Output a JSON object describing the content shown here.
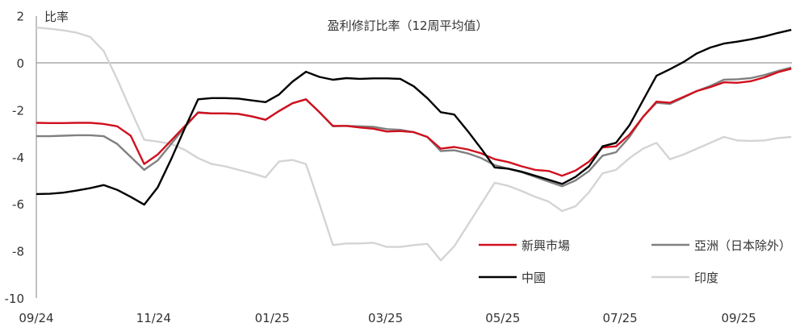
{
  "chart_data": {
    "type": "line",
    "title": "盈利修訂比率（12周平均值）",
    "ylabel": "比率",
    "ylim": [
      -10,
      2
    ],
    "yticks": [
      2,
      0,
      -2,
      -4,
      -6,
      -8,
      -10
    ],
    "grid": false,
    "zero_line": true,
    "legend_placement": "bottom-right",
    "x_tick_labels": [
      {
        "label": "09/24",
        "at": 0
      },
      {
        "label": "11/24",
        "at": 8.7
      },
      {
        "label": "01/25",
        "at": 17.5
      },
      {
        "label": "03/25",
        "at": 25.9
      },
      {
        "label": "05/25",
        "at": 34.6
      },
      {
        "label": "07/25",
        "at": 43.3
      },
      {
        "label": "09/25",
        "at": 52.1
      }
    ],
    "series": [
      {
        "name": "新興市場",
        "color": "#d0101e",
        "values": [
          -2.55,
          -2.56,
          -2.56,
          -2.55,
          -2.55,
          -2.6,
          -2.7,
          -3.1,
          -4.3,
          -3.9,
          -3.3,
          -2.7,
          -2.12,
          -2.15,
          -2.15,
          -2.17,
          -2.28,
          -2.42,
          -2.05,
          -1.72,
          -1.55,
          -2.1,
          -2.68,
          -2.68,
          -2.75,
          -2.8,
          -2.92,
          -2.9,
          -2.95,
          -3.15,
          -3.65,
          -3.58,
          -3.68,
          -3.85,
          -4.1,
          -4.22,
          -4.4,
          -4.55,
          -4.6,
          -4.8,
          -4.58,
          -4.2,
          -3.6,
          -3.55,
          -3.05,
          -2.3,
          -1.65,
          -1.7,
          -1.45,
          -1.2,
          -1.03,
          -0.83,
          -0.85,
          -0.78,
          -0.62,
          -0.4,
          -0.25
        ]
      },
      {
        "name": "亞洲（日本除外）",
        "color": "#808080",
        "values": [
          -3.12,
          -3.12,
          -3.1,
          -3.08,
          -3.08,
          -3.12,
          -3.45,
          -4.0,
          -4.55,
          -4.15,
          -3.45,
          -2.75,
          -2.1,
          -2.15,
          -2.15,
          -2.17,
          -2.28,
          -2.42,
          -2.05,
          -1.72,
          -1.55,
          -2.1,
          -2.7,
          -2.68,
          -2.7,
          -2.72,
          -2.82,
          -2.85,
          -2.95,
          -3.15,
          -3.75,
          -3.72,
          -3.85,
          -4.05,
          -4.35,
          -4.5,
          -4.65,
          -4.85,
          -5.05,
          -5.25,
          -5.0,
          -4.6,
          -3.95,
          -3.8,
          -3.15,
          -2.3,
          -1.7,
          -1.75,
          -1.48,
          -1.2,
          -0.98,
          -0.72,
          -0.7,
          -0.65,
          -0.52,
          -0.35,
          -0.2
        ]
      },
      {
        "name": "中國",
        "color": "#000000",
        "values": [
          -5.58,
          -5.57,
          -5.52,
          -5.43,
          -5.33,
          -5.2,
          -5.4,
          -5.7,
          -6.03,
          -5.3,
          -4.1,
          -2.8,
          -1.55,
          -1.5,
          -1.5,
          -1.52,
          -1.6,
          -1.67,
          -1.35,
          -0.8,
          -0.38,
          -0.6,
          -0.72,
          -0.65,
          -0.68,
          -0.66,
          -0.66,
          -0.68,
          -1.0,
          -1.5,
          -2.1,
          -2.2,
          -2.9,
          -3.65,
          -4.45,
          -4.5,
          -4.63,
          -4.8,
          -4.97,
          -5.15,
          -4.85,
          -4.4,
          -3.55,
          -3.4,
          -2.65,
          -1.6,
          -0.55,
          -0.27,
          0.03,
          0.4,
          0.65,
          0.82,
          0.9,
          1.0,
          1.12,
          1.27,
          1.4
        ]
      },
      {
        "name": "印度",
        "color": "#d4d4d4",
        "values": [
          1.5,
          1.45,
          1.38,
          1.28,
          1.1,
          0.5,
          -0.7,
          -2.0,
          -3.27,
          -3.35,
          -3.45,
          -3.7,
          -4.05,
          -4.3,
          -4.4,
          -4.55,
          -4.7,
          -4.87,
          -4.2,
          -4.13,
          -4.3,
          -6.0,
          -7.75,
          -7.68,
          -7.68,
          -7.65,
          -7.83,
          -7.83,
          -7.75,
          -7.7,
          -8.4,
          -7.8,
          -6.9,
          -6.0,
          -5.1,
          -5.23,
          -5.45,
          -5.7,
          -5.9,
          -6.3,
          -6.1,
          -5.5,
          -4.7,
          -4.55,
          -4.05,
          -3.65,
          -3.4,
          -4.1,
          -3.9,
          -3.65,
          -3.4,
          -3.15,
          -3.3,
          -3.32,
          -3.3,
          -3.2,
          -3.15
        ]
      }
    ]
  }
}
